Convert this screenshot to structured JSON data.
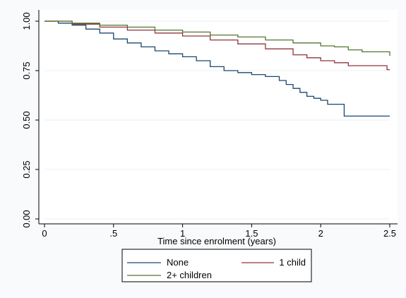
{
  "chart_data": {
    "type": "line",
    "style": "step",
    "title": "",
    "xlabel": "Time since enrolment (years)",
    "ylabel": "",
    "xlim": [
      0,
      2.5
    ],
    "ylim": [
      0,
      1
    ],
    "x_ticks": [
      0,
      0.5,
      1,
      1.5,
      2,
      2.5
    ],
    "x_tick_labels": [
      "0",
      ".5",
      "1",
      "1.5",
      "2",
      "2.5"
    ],
    "y_ticks": [
      0,
      0.25,
      0.5,
      0.75,
      1
    ],
    "y_tick_labels": [
      "0.00",
      "0.25",
      "0.50",
      "0.75",
      "1.00"
    ],
    "grid": "horizontal",
    "legend_position": "bottom",
    "colors": {
      "background": "#f8fafc",
      "plot_area": "#ffffff",
      "grid": "#eaf2f3",
      "axis": "#000000"
    },
    "series": [
      {
        "name": "None",
        "color": "#1a476f",
        "x": [
          0,
          0.1,
          0.2,
          0.3,
          0.4,
          0.5,
          0.6,
          0.7,
          0.8,
          0.9,
          1.0,
          1.1,
          1.2,
          1.3,
          1.4,
          1.5,
          1.6,
          1.7,
          1.75,
          1.8,
          1.85,
          1.9,
          1.95,
          2.0,
          2.05,
          2.1,
          2.17,
          2.3,
          2.5
        ],
        "y": [
          1.0,
          0.99,
          0.98,
          0.96,
          0.94,
          0.91,
          0.89,
          0.87,
          0.85,
          0.835,
          0.82,
          0.8,
          0.77,
          0.75,
          0.74,
          0.73,
          0.72,
          0.7,
          0.68,
          0.66,
          0.64,
          0.62,
          0.61,
          0.6,
          0.58,
          0.58,
          0.52,
          0.52,
          0.52
        ]
      },
      {
        "name": "1 child",
        "color": "#90353b",
        "x": [
          0,
          0.2,
          0.4,
          0.6,
          0.8,
          1.0,
          1.2,
          1.4,
          1.6,
          1.8,
          1.9,
          2.0,
          2.1,
          2.2,
          2.3,
          2.4,
          2.48,
          2.5
        ],
        "y": [
          1.0,
          0.985,
          0.97,
          0.955,
          0.94,
          0.925,
          0.905,
          0.885,
          0.86,
          0.83,
          0.815,
          0.8,
          0.79,
          0.775,
          0.775,
          0.775,
          0.755,
          0.755
        ]
      },
      {
        "name": "2+ children",
        "color": "#55752f",
        "x": [
          0,
          0.2,
          0.4,
          0.6,
          0.8,
          1.0,
          1.2,
          1.4,
          1.6,
          1.8,
          2.0,
          2.1,
          2.2,
          2.3,
          2.4,
          2.48,
          2.5
        ],
        "y": [
          1.0,
          0.99,
          0.98,
          0.97,
          0.955,
          0.945,
          0.93,
          0.92,
          0.905,
          0.89,
          0.875,
          0.87,
          0.855,
          0.845,
          0.845,
          0.845,
          0.825
        ]
      }
    ]
  }
}
